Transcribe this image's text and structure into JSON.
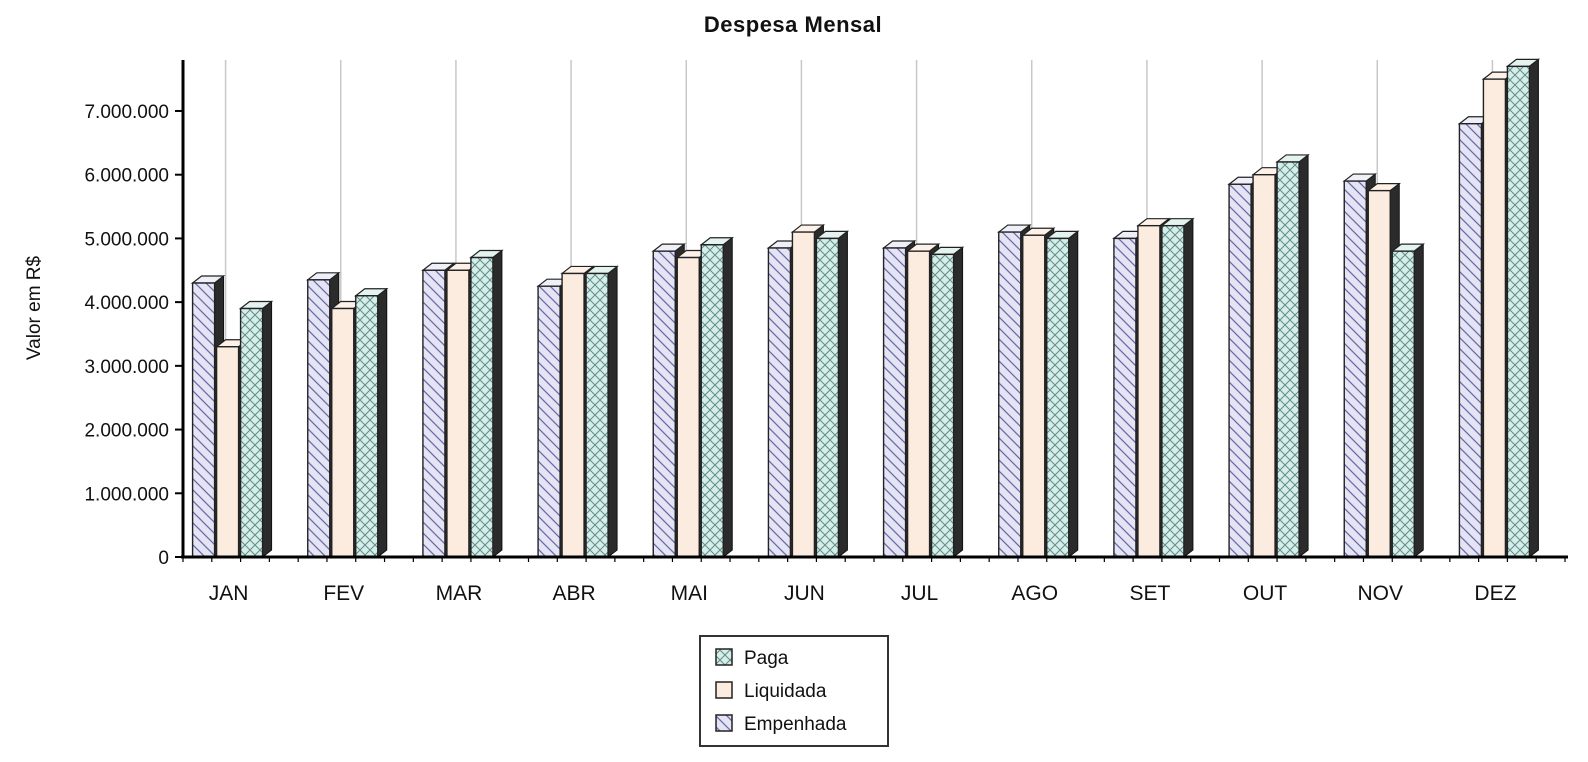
{
  "chart_data": {
    "type": "bar",
    "title": "Despesa Mensal",
    "xlabel": "",
    "ylabel": "Valor em R$",
    "ylim": [
      0,
      7800000
    ],
    "yticks": [
      0,
      1000000,
      2000000,
      3000000,
      4000000,
      5000000,
      6000000,
      7000000
    ],
    "ytick_labels": [
      "0",
      "1.000.000",
      "2.000.000",
      "3.000.000",
      "4.000.000",
      "5.000.000",
      "6.000.000",
      "7.000.000"
    ],
    "categories": [
      "JAN",
      "FEV",
      "MAR",
      "ABR",
      "MAI",
      "JUN",
      "JUL",
      "AGO",
      "SET",
      "OUT",
      "NOV",
      "DEZ"
    ],
    "series": [
      {
        "name": "Empenhada",
        "pattern": "diagonal",
        "color": "#d9d9f0",
        "values": [
          4300000,
          4350000,
          4500000,
          4250000,
          4800000,
          4850000,
          4850000,
          5100000,
          5000000,
          5850000,
          5900000,
          6800000
        ]
      },
      {
        "name": "Liquidada",
        "pattern": "plain",
        "color": "#fbe9dc",
        "values": [
          3300000,
          3900000,
          4500000,
          4450000,
          4700000,
          5100000,
          4800000,
          5050000,
          5200000,
          6000000,
          5750000,
          7500000
        ]
      },
      {
        "name": "Paga",
        "pattern": "crosshatch",
        "color": "#cfe8e4",
        "values": [
          3900000,
          4100000,
          4700000,
          4450000,
          4900000,
          5000000,
          4750000,
          5000000,
          5200000,
          6200000,
          4800000,
          7700000
        ]
      }
    ],
    "legend": {
      "placement": "bottom-center",
      "entries": [
        "Paga",
        "Liquidada",
        "Empenhada"
      ]
    },
    "grid": {
      "vertical": true,
      "horizontal": false
    }
  }
}
